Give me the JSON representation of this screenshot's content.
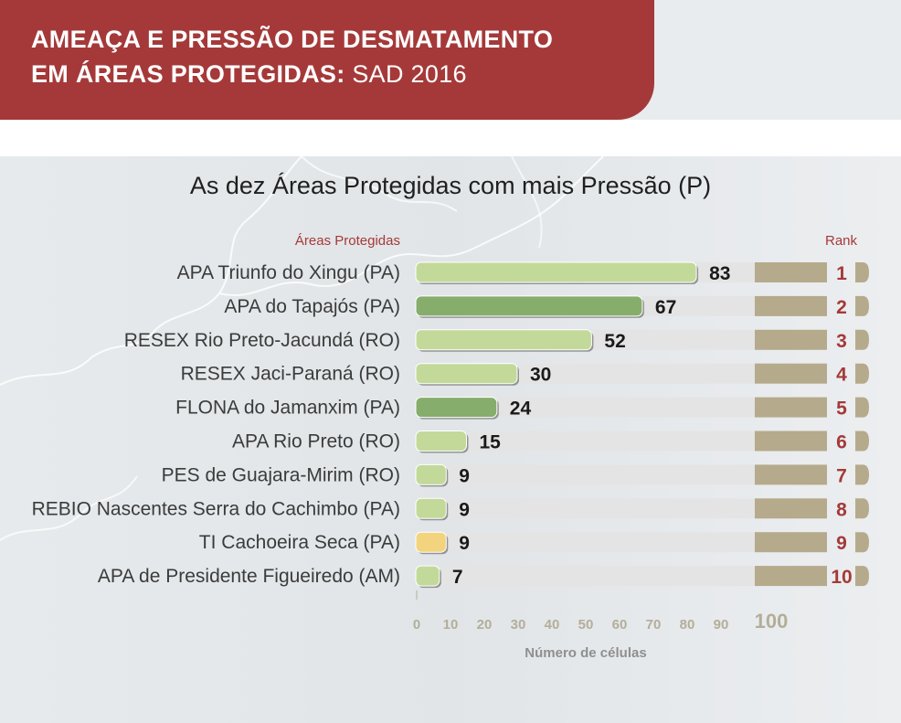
{
  "header": {
    "line1": "AMEAÇA E PRESSÃO DE DESMATAMENTO",
    "line2_main": "EM ÁREAS PROTEGIDAS:",
    "line2_suffix": "SAD 2016"
  },
  "colors": {
    "header_bg": "#a53939",
    "accent_red": "#a53939",
    "bar_light_green": "#c3d99a",
    "bar_dark_green": "#86ad6c",
    "bar_yellow": "#f2d47e",
    "track_light": "#e4e4e4",
    "track_tan": "#b5aa8c",
    "tick_color": "#b3ae99"
  },
  "chart_data": {
    "type": "bar",
    "orientation": "horizontal",
    "title": "As dez Áreas Protegidas com mais Pressão (P)",
    "category_header": "Áreas Protegidas",
    "rank_header": "Rank",
    "xlabel": "Número de células",
    "xlim": [
      0,
      100
    ],
    "xticks": [
      "0",
      "10",
      "20",
      "30",
      "40",
      "50",
      "60",
      "70",
      "80",
      "90",
      "100"
    ],
    "categories": [
      "APA Triunfo do Xingu (PA)",
      "APA do Tapajós (PA)",
      "RESEX Rio Preto-Jacundá (RO)",
      "RESEX Jaci-Paraná (RO)",
      "FLONA do Jamanxim (PA)",
      "APA Rio Preto (RO)",
      "PES de Guajara-Mirim (RO)",
      "REBIO Nascentes Serra do Cachimbo (PA)",
      "TI Cachoeira Seca (PA)",
      "APA de Presidente  Figueiredo (AM)"
    ],
    "values": [
      83,
      67,
      52,
      30,
      24,
      15,
      9,
      9,
      9,
      7
    ],
    "ranks": [
      "1",
      "2",
      "3",
      "4",
      "5",
      "6",
      "7",
      "8",
      "9",
      "10"
    ],
    "bar_colors": [
      "#c3d99a",
      "#86ad6c",
      "#c3d99a",
      "#c3d99a",
      "#86ad6c",
      "#c3d99a",
      "#c3d99a",
      "#c3d99a",
      "#f2d47e",
      "#c3d99a"
    ],
    "grid": false
  }
}
